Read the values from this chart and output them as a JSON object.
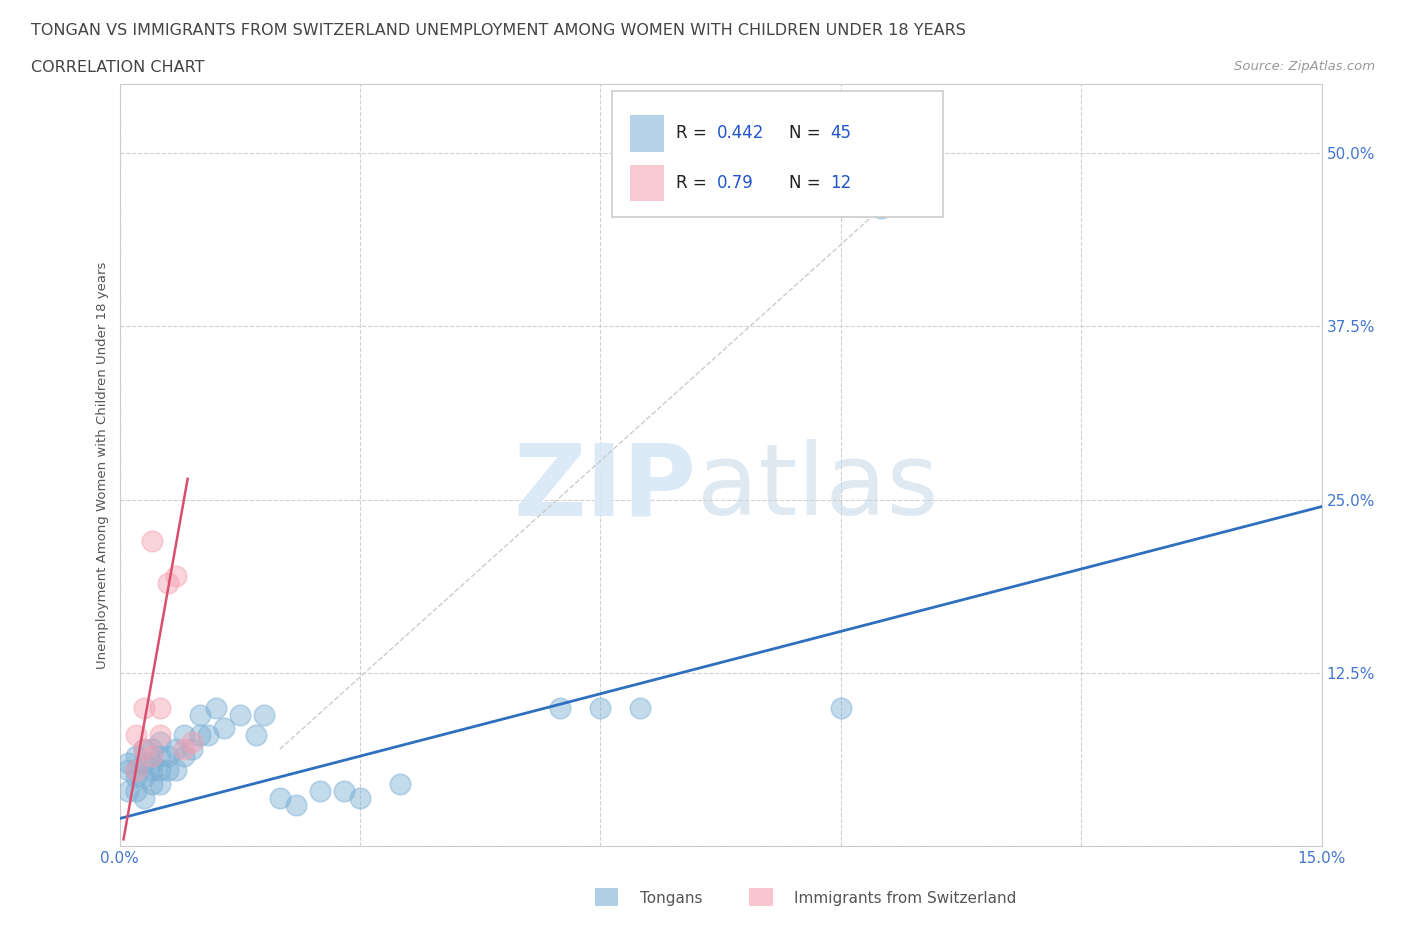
{
  "title_line1": "TONGAN VS IMMIGRANTS FROM SWITZERLAND UNEMPLOYMENT AMONG WOMEN WITH CHILDREN UNDER 18 YEARS",
  "title_line2": "CORRELATION CHART",
  "source": "Source: ZipAtlas.com",
  "ylabel": "Unemployment Among Women with Children Under 18 years",
  "xlim": [
    0.0,
    0.15
  ],
  "ylim": [
    0.0,
    0.55
  ],
  "xticks": [
    0.0,
    0.03,
    0.06,
    0.09,
    0.12,
    0.15
  ],
  "xtick_labels": [
    "0.0%",
    "",
    "",
    "",
    "",
    "15.0%"
  ],
  "yticks": [
    0.0,
    0.125,
    0.25,
    0.375,
    0.5
  ],
  "ytick_labels": [
    "",
    "12.5%",
    "25.0%",
    "37.5%",
    "50.0%"
  ],
  "blue_color": "#7BAFD4",
  "pink_color": "#F4A0B0",
  "blue_line_color": "#2E6FBF",
  "pink_line_color": "#D94F6E",
  "gray_line_color": "#C0C0C0",
  "R_blue": 0.442,
  "N_blue": 45,
  "R_pink": 0.79,
  "N_pink": 12,
  "tongans_x": [
    0.001,
    0.001,
    0.001,
    0.002,
    0.002,
    0.002,
    0.002,
    0.003,
    0.003,
    0.003,
    0.003,
    0.004,
    0.004,
    0.004,
    0.004,
    0.005,
    0.005,
    0.005,
    0.005,
    0.006,
    0.006,
    0.007,
    0.007,
    0.008,
    0.008,
    0.009,
    0.01,
    0.01,
    0.011,
    0.012,
    0.013,
    0.015,
    0.017,
    0.018,
    0.02,
    0.022,
    0.025,
    0.028,
    0.03,
    0.035,
    0.055,
    0.06,
    0.065,
    0.09,
    0.095
  ],
  "tongans_y": [
    0.04,
    0.055,
    0.06,
    0.04,
    0.05,
    0.055,
    0.065,
    0.035,
    0.05,
    0.06,
    0.07,
    0.045,
    0.055,
    0.06,
    0.07,
    0.045,
    0.055,
    0.065,
    0.075,
    0.055,
    0.065,
    0.055,
    0.07,
    0.065,
    0.08,
    0.07,
    0.08,
    0.095,
    0.08,
    0.1,
    0.085,
    0.095,
    0.08,
    0.095,
    0.035,
    0.03,
    0.04,
    0.04,
    0.035,
    0.045,
    0.1,
    0.1,
    0.1,
    0.1,
    0.46
  ],
  "swiss_x": [
    0.002,
    0.002,
    0.003,
    0.003,
    0.004,
    0.004,
    0.005,
    0.005,
    0.006,
    0.007,
    0.008,
    0.009
  ],
  "swiss_y": [
    0.055,
    0.08,
    0.07,
    0.1,
    0.065,
    0.22,
    0.08,
    0.1,
    0.19,
    0.195,
    0.07,
    0.075
  ],
  "title_color": "#444444",
  "axis_color": "#4477CC",
  "grid_color": "#D0D0D0",
  "legend_R_color": "#2255CC",
  "legend_label_color": "#222222"
}
